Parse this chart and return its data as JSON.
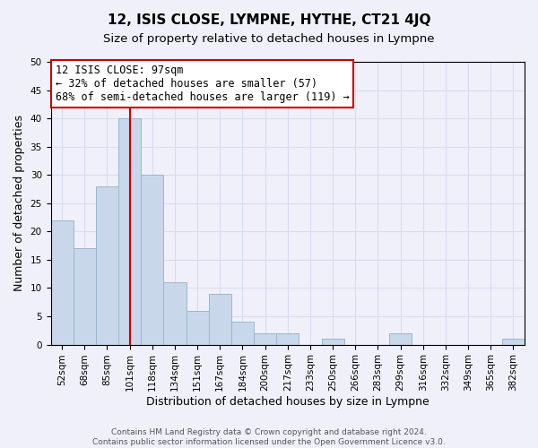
{
  "title": "12, ISIS CLOSE, LYMPNE, HYTHE, CT21 4JQ",
  "subtitle": "Size of property relative to detached houses in Lympne",
  "xlabel": "Distribution of detached houses by size in Lympne",
  "ylabel": "Number of detached properties",
  "bar_labels": [
    "52sqm",
    "68sqm",
    "85sqm",
    "101sqm",
    "118sqm",
    "134sqm",
    "151sqm",
    "167sqm",
    "184sqm",
    "200sqm",
    "217sqm",
    "233sqm",
    "250sqm",
    "266sqm",
    "283sqm",
    "299sqm",
    "316sqm",
    "332sqm",
    "349sqm",
    "365sqm",
    "382sqm"
  ],
  "bar_values": [
    22,
    17,
    28,
    40,
    30,
    11,
    6,
    9,
    4,
    2,
    2,
    0,
    1,
    0,
    0,
    2,
    0,
    0,
    0,
    0,
    1
  ],
  "bar_color": "#c8d8ea",
  "bar_edge_color": "#9ab8cc",
  "vline_color": "#cc0000",
  "annotation_text": "12 ISIS CLOSE: 97sqm\n← 32% of detached houses are smaller (57)\n68% of semi-detached houses are larger (119) →",
  "annotation_box_edgecolor": "#cc0000",
  "ylim": [
    0,
    50
  ],
  "yticks": [
    0,
    5,
    10,
    15,
    20,
    25,
    30,
    35,
    40,
    45,
    50
  ],
  "footer_line1": "Contains HM Land Registry data © Crown copyright and database right 2024.",
  "footer_line2": "Contains public sector information licensed under the Open Government Licence v3.0.",
  "background_color": "#f0f0fa",
  "grid_color": "#d8ddf0",
  "title_fontsize": 11,
  "subtitle_fontsize": 9.5,
  "xlabel_fontsize": 9,
  "ylabel_fontsize": 9,
  "tick_fontsize": 7.5,
  "annotation_fontsize": 8.5,
  "footer_fontsize": 6.5,
  "vline_x_index": 3
}
